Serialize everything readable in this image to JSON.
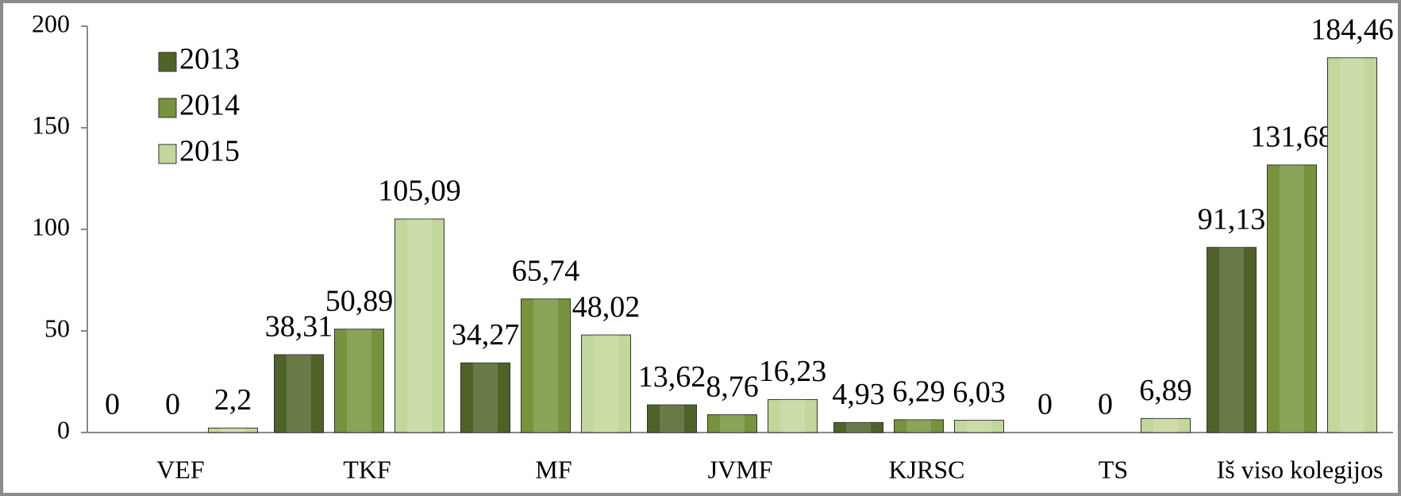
{
  "chart_data": {
    "type": "bar",
    "categories": [
      "VEF",
      "TKF",
      "MF",
      "JVMF",
      "KJRSC",
      "TS",
      "Iš viso kolegijos"
    ],
    "series": [
      {
        "name": "2013",
        "color": "#4f6228",
        "values": [
          0,
          38.31,
          34.27,
          13.62,
          4.93,
          0,
          91.13
        ],
        "value_labels": [
          "0",
          "38,31",
          "34,27",
          "13,62",
          "4,93",
          "0",
          "91,13"
        ]
      },
      {
        "name": "2014",
        "color": "#77933c",
        "values": [
          0,
          50.89,
          65.74,
          8.76,
          6.29,
          0,
          131.68
        ],
        "value_labels": [
          "0",
          "50,89",
          "65,74",
          "8,76",
          "6,29",
          "0",
          "131,68"
        ]
      },
      {
        "name": "2015",
        "color": "#c3d69b",
        "values": [
          2.2,
          105.09,
          48.02,
          16.23,
          6.03,
          6.89,
          184.46
        ],
        "value_labels": [
          "2,2",
          "105,09",
          "48,02",
          "16,23",
          "6,03",
          "6,89",
          "184,46"
        ]
      }
    ],
    "ylim": [
      0,
      200
    ],
    "yticks": [
      0,
      50,
      100,
      150,
      200
    ],
    "legend": "top-left"
  }
}
